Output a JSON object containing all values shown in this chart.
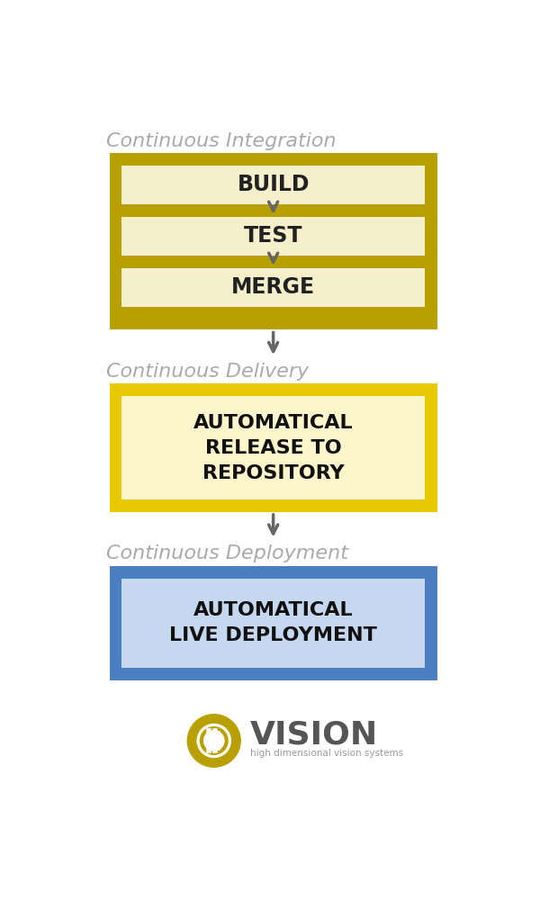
{
  "bg_color": "#ffffff",
  "section_label_color": "#aaaaaa",
  "section_label_fontsize": 16,
  "arrow_color": "#666666",
  "ci_outer_color": "#b8a000",
  "ci_label": "Continuous Integration",
  "ci_steps": [
    "BUILD",
    "TEST",
    "MERGE"
  ],
  "ci_step_color": "#f5efcb",
  "ci_step_text_color": "#222222",
  "cd_outer_color": "#e8c800",
  "cd_inner_color": "#fdf5cc",
  "cd_label": "Continuous Delivery",
  "cd_text": "AUTOMATICAL\nRELEASE TO\nREPOSITORY",
  "cd_text_color": "#111111",
  "dep_outer_color": "#4a7fc1",
  "dep_inner_color": "#c5d8f0",
  "dep_label": "Continuous Deployment",
  "dep_text": "AUTOMATICAL\nLIVE DEPLOYMENT",
  "dep_text_color": "#111111",
  "logo_color": "#b8a000",
  "logo_text": "VISION",
  "logo_sub": "high dimensional vision systems",
  "logo_text_color": "#555555",
  "logo_vision_color": "#555555"
}
